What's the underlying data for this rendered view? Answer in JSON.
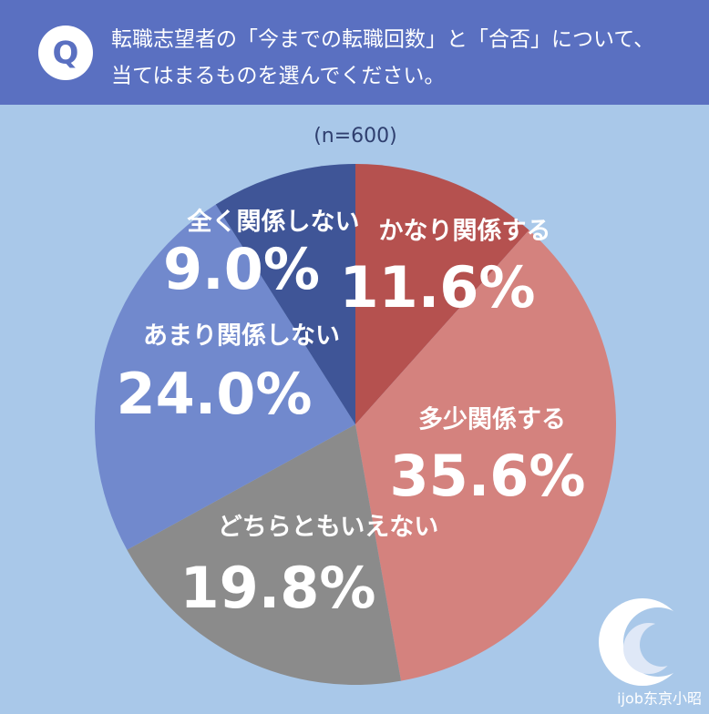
{
  "chart_data": {
    "type": "pie",
    "badge": "Q",
    "title": [
      "転職志望者の「今までの転職回数」と「合否」について、",
      "当てはまるものを選んでください。"
    ],
    "subtitle": "(n=600)",
    "categories": [
      "かなり関係する",
      "多少関係する",
      "どちらともいえない",
      "あまり関係しない",
      "全く関係しない"
    ],
    "values": [
      11.6,
      35.6,
      19.8,
      24.0,
      9.0
    ],
    "value_labels": [
      "11.6%",
      "35.6%",
      "19.8%",
      "24.0%",
      "9.0%"
    ],
    "colors": [
      "#b5514f",
      "#d4827e",
      "#8b8b8b",
      "#7189cd",
      "#3f5597"
    ],
    "watermark": "ijob东京小昭"
  }
}
